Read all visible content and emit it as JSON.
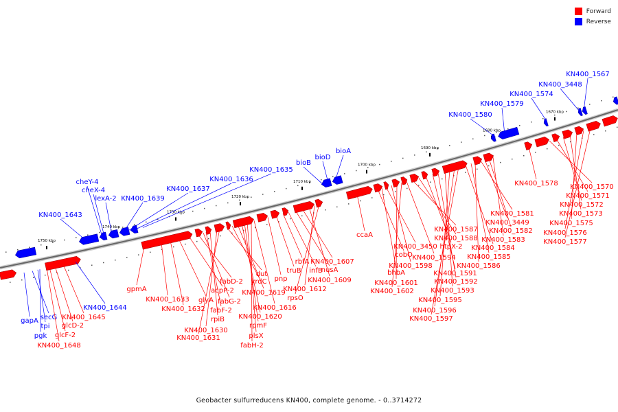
{
  "legend": {
    "forward_label": "Forward",
    "reverse_label": "Reverse",
    "forward_color": "#ff0000",
    "reverse_color": "#0000ff"
  },
  "caption": "Geobacter sulfurreducens KN400, complete genome. - 0..3714272",
  "ruler_ticks": [
    "1750 kbp",
    "1740 kbp",
    "1730 kbp",
    "1720 kbp",
    "1710 kbp",
    "1700 kbp",
    "1690 kbp",
    "1680 kbp",
    "1670 kbp"
  ],
  "reverse_genes_upper": [
    "KN400_1643",
    "cheY-4",
    "cheX-4",
    "lexA-2",
    "KN400_1639",
    "KN400_1637",
    "KN400_1636",
    "KN400_1635",
    "bioB",
    "bioD",
    "bioA",
    "KN400_1580",
    "KN400_1579",
    "KN400_1574",
    "KN400_3448",
    "KN400_1567"
  ],
  "reverse_genes_lower": [
    "gapA",
    "secG",
    "tpi",
    "pgk",
    "KN400_1644"
  ],
  "forward_genes": [
    "KN400_1645",
    "glcD-2",
    "glcF-2",
    "KN400_1648",
    "gpmA",
    "KN400_1633",
    "KN400_1632",
    "glyA",
    "acpP-2",
    "fabD-2",
    "fabG-2",
    "fabF-2",
    "rpiB",
    "KN400_1630",
    "KN400_1631",
    "dut",
    "yrdC",
    "KN400_1619",
    "KN400_1620",
    "rpmF",
    "plsX",
    "fabH-2",
    "KN400_1616",
    "pnp",
    "truB",
    "rbfA",
    "infB",
    "nusA",
    "KN400_1607",
    "KN400_1609",
    "KN400_1612",
    "rpsO",
    "ccaA",
    "cobO",
    "bhbA",
    "KN400_3450",
    "KN400_1598",
    "KN400_1601",
    "KN400_1602",
    "KN400_1594",
    "KN400_1587",
    "KN400_1588",
    "htpX-2",
    "KN400_1591",
    "KN400_1592",
    "KN400_1593",
    "KN400_1595",
    "KN400_1596",
    "KN400_1597",
    "KN400_1584",
    "KN400_1585",
    "KN400_1586",
    "KN400_1581",
    "KN400_3449",
    "KN400_1582",
    "KN400_1583",
    "KN400_1578",
    "KN400_1570",
    "KN400_1571",
    "KN400_1572",
    "KN400_1573",
    "KN400_1575",
    "KN400_1576",
    "KN400_1577"
  ]
}
